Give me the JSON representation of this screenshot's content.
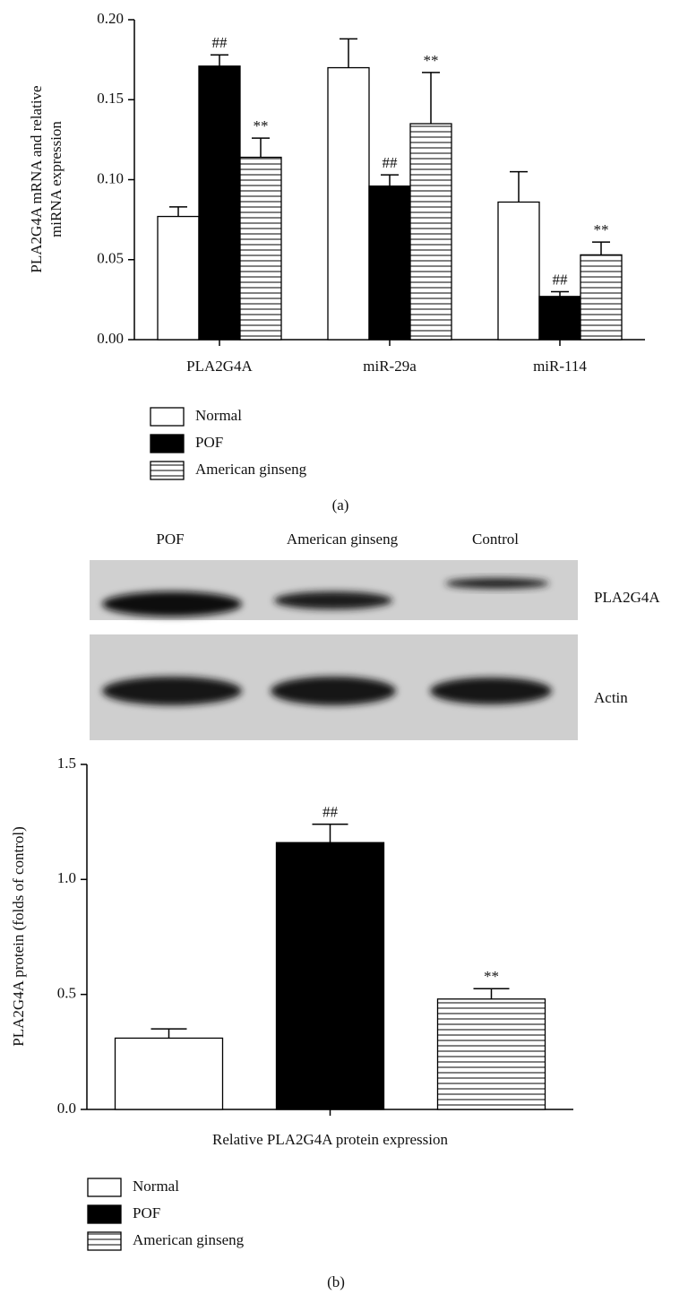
{
  "chart_data": [
    {
      "type": "bar",
      "ylabel": [
        "PLA2G4A mRNA and relative",
        "miRNA expression"
      ],
      "categories": [
        "PLA2G4A",
        "miR-29a",
        "miR-114"
      ],
      "series": [
        {
          "name": "Normal",
          "color": "#ffffff",
          "values": [
            0.077,
            0.17,
            0.086
          ],
          "errors": [
            0.006,
            0.018,
            0.019
          ]
        },
        {
          "name": "POF",
          "color": "#000000",
          "values": [
            0.171,
            0.096,
            0.027
          ],
          "errors": [
            0.007,
            0.007,
            0.003
          ],
          "significance": [
            "##",
            "##",
            "##"
          ]
        },
        {
          "name": "American ginseng",
          "color": "#ffffff",
          "hatch": "horizontal",
          "values": [
            0.114,
            0.135,
            0.053
          ],
          "errors": [
            0.012,
            0.032,
            0.008
          ],
          "significance": [
            "**",
            "**",
            "**"
          ]
        }
      ],
      "ylim": [
        0,
        0.2
      ],
      "yticks": [
        {
          "value": 0,
          "label": "0.00"
        },
        0.05,
        {
          "value": 0.1,
          "label": "0.10"
        },
        0.15,
        {
          "value": 0.2,
          "label": "0.20"
        }
      ],
      "caption": "(a)"
    },
    {
      "type": "bar",
      "ylabel": [
        "PLA2G4A protein (folds of control)"
      ],
      "xlabel": "Relative PLA2G4A protein expression",
      "categories": [
        null
      ],
      "series": [
        {
          "name": "Normal",
          "color": "#ffffff",
          "values": [
            0.31
          ],
          "errors": [
            0.04
          ]
        },
        {
          "name": "POF",
          "color": "#000000",
          "values": [
            1.16
          ],
          "errors": [
            0.08
          ],
          "significance": [
            "##"
          ]
        },
        {
          "name": "American ginseng",
          "color": "#ffffff",
          "hatch": "horizontal",
          "values": [
            0.48
          ],
          "errors": [
            0.045
          ],
          "significance": [
            "**"
          ]
        }
      ],
      "ylim": [
        0,
        1.5
      ],
      "yticks": [
        {
          "value": 0,
          "label": "0.0"
        },
        0.5,
        {
          "value": 1,
          "label": "1.0"
        },
        1.5
      ],
      "caption": "(b)"
    }
  ],
  "blot": {
    "lanes": [
      "POF",
      "American ginseng",
      "Control"
    ],
    "rows": [
      "PLA2G4A",
      "Actin"
    ]
  }
}
